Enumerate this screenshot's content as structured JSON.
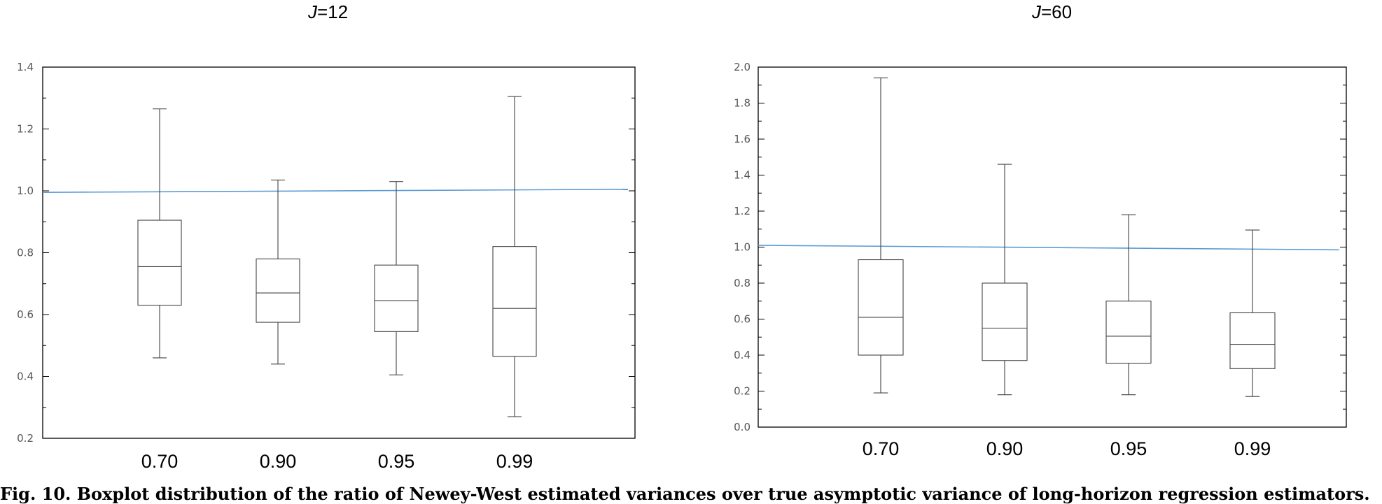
{
  "figure": {
    "caption": "Fig. 10. Boxplot distribution of the ratio of Newey-West estimated variances over true asymptotic variance of long-horizon regression estimators."
  },
  "chart_data": [
    {
      "type": "boxplot",
      "title_prefix": "J",
      "title_suffix": "=12",
      "categories": [
        "0.70",
        "0.90",
        "0.95",
        "0.99"
      ],
      "boxes": [
        {
          "whisker_low": 0.46,
          "q1": 0.63,
          "median": 0.755,
          "q3": 0.905,
          "whisker_high": 1.265
        },
        {
          "whisker_low": 0.44,
          "q1": 0.575,
          "median": 0.67,
          "q3": 0.78,
          "whisker_high": 1.035
        },
        {
          "whisker_low": 0.405,
          "q1": 0.545,
          "median": 0.645,
          "q3": 0.76,
          "whisker_high": 1.03
        },
        {
          "whisker_low": 0.27,
          "q1": 0.465,
          "median": 0.62,
          "q3": 0.82,
          "whisker_high": 1.305
        }
      ],
      "reference_line": {
        "start": 0.995,
        "end": 1.005,
        "color": "#5b9bd5"
      },
      "ylim": [
        0.2,
        1.4
      ],
      "yticks": [
        "0.2",
        "0.4",
        "0.6",
        "0.8",
        "1.0",
        "1.2",
        "1.4"
      ],
      "xlabel": "",
      "ylabel": ""
    },
    {
      "type": "boxplot",
      "title_prefix": "J",
      "title_suffix": "=60",
      "categories": [
        "0.70",
        "0.90",
        "0.95",
        "0.99"
      ],
      "boxes": [
        {
          "whisker_low": 0.19,
          "q1": 0.4,
          "median": 0.61,
          "q3": 0.93,
          "whisker_high": 1.94
        },
        {
          "whisker_low": 0.18,
          "q1": 0.37,
          "median": 0.55,
          "q3": 0.8,
          "whisker_high": 1.46
        },
        {
          "whisker_low": 0.18,
          "q1": 0.355,
          "median": 0.505,
          "q3": 0.7,
          "whisker_high": 1.18
        },
        {
          "whisker_low": 0.17,
          "q1": 0.325,
          "median": 0.46,
          "q3": 0.635,
          "whisker_high": 1.095
        }
      ],
      "reference_line": {
        "start": 1.01,
        "end": 0.985,
        "color": "#5b9bd5"
      },
      "ylim": [
        0.0,
        2.0
      ],
      "yticks": [
        "0.0",
        "0.2",
        "0.4",
        "0.6",
        "0.8",
        "1.0",
        "1.2",
        "1.4",
        "1.6",
        "1.8",
        "2.0"
      ],
      "xlabel": "",
      "ylabel": ""
    }
  ]
}
